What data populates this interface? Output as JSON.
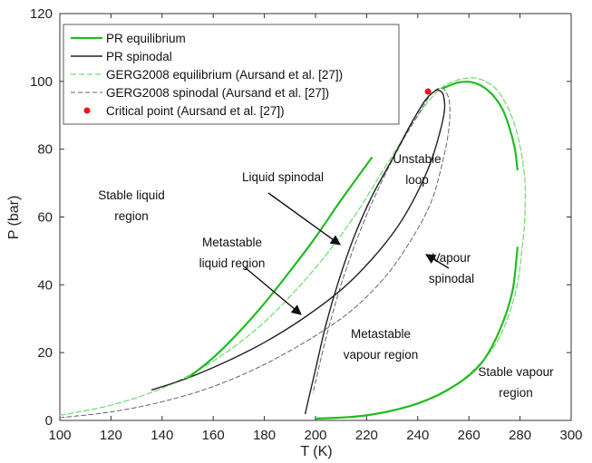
{
  "chart_data": {
    "type": "line",
    "title": "",
    "xlabel": "T (K)",
    "ylabel": "P (bar)",
    "xlim": [
      100,
      300
    ],
    "ylim": [
      0,
      120
    ],
    "xticks": [
      100,
      120,
      140,
      160,
      180,
      200,
      220,
      240,
      260,
      280,
      300
    ],
    "yticks": [
      0,
      20,
      40,
      60,
      80,
      100,
      120
    ],
    "grid": false,
    "legend_position": "top-left",
    "series": [
      {
        "name": "PR equilibrium",
        "style": "solid",
        "color": "#22bb22",
        "width": 2.2,
        "segments": [
          [
            [
              150,
              12.5
            ],
            [
              160,
              18.5
            ],
            [
              170,
              26
            ],
            [
              180,
              34.5
            ],
            [
              190,
              44
            ],
            [
              200,
              54
            ],
            [
              210,
              65
            ],
            [
              222,
              77.5
            ]
          ],
          [
            [
              200,
              0.5
            ],
            [
              220,
              1.5
            ],
            [
              240,
              5
            ],
            [
              255,
              10.5
            ],
            [
              265,
              17
            ],
            [
              272,
              26.5
            ],
            [
              277,
              38
            ],
            [
              279,
              51
            ]
          ],
          [
            [
              250,
              98
            ],
            [
              256,
              99.7
            ],
            [
              262,
              99.6
            ],
            [
              268,
              97
            ],
            [
              273,
              92
            ],
            [
              276,
              86
            ],
            [
              278,
              80
            ],
            [
              279,
              74
            ]
          ]
        ]
      },
      {
        "name": "PR spinodal",
        "style": "solid",
        "color": "#222222",
        "width": 1.4,
        "segments": [
          [
            [
              136,
              9
            ],
            [
              150,
              12.5
            ],
            [
              165,
              17.3
            ],
            [
              180,
              23
            ],
            [
              195,
              30
            ],
            [
              210,
              38.5
            ],
            [
              222,
              47.5
            ],
            [
              232,
              57
            ],
            [
              239,
              66
            ],
            [
              245,
              76
            ],
            [
              249,
              86
            ],
            [
              250.5,
              92
            ],
            [
              250,
              96
            ],
            [
              248.5,
              97.3
            ],
            [
              247,
              97.3
            ],
            [
              243,
              94.5
            ],
            [
              237,
              87
            ],
            [
              230,
              77
            ],
            [
              222,
              66
            ],
            [
              215,
              54
            ],
            [
              209,
              41
            ],
            [
              204,
              28
            ],
            [
              200,
              15
            ],
            [
              197.5,
              7
            ],
            [
              196,
              2
            ]
          ]
        ]
      },
      {
        "name": "GERG2008 equilibrium (Aursand et al. [27])",
        "style": "dashed",
        "color": "#6edc6e",
        "width": 1.2,
        "segments": [
          [
            [
              100,
              1.5
            ],
            [
              120,
              4.5
            ],
            [
              140,
              9.5
            ],
            [
              160,
              17.5
            ],
            [
              180,
              29
            ],
            [
              200,
              45
            ],
            [
              215,
              60
            ],
            [
              225,
              72
            ],
            [
              235,
              84
            ],
            [
              243,
              93
            ],
            [
              250,
              98.5
            ],
            [
              258,
              100.8
            ],
            [
              265,
              100.5
            ],
            [
              272,
              96.5
            ],
            [
              278,
              87
            ],
            [
              281.5,
              74
            ],
            [
              282,
              63
            ],
            [
              281,
              52
            ],
            [
              278,
              37
            ],
            [
              270,
              22
            ],
            [
              255,
              10.5
            ],
            [
              240,
              5
            ],
            [
              220,
              1.6
            ],
            [
              200,
              0.6
            ]
          ]
        ]
      },
      {
        "name": "GERG2008 spinodal (Aursand et al. [27])",
        "style": "dashed",
        "color": "#666666",
        "width": 1.0,
        "segments": [
          [
            [
              100,
              0.8
            ],
            [
              120,
              2.5
            ],
            [
              140,
              5.5
            ],
            [
              160,
              10
            ],
            [
              180,
              16.5
            ],
            [
              200,
              25
            ],
            [
              215,
              33
            ],
            [
              228,
              43
            ],
            [
              238,
              54
            ],
            [
              245,
              64
            ],
            [
              249,
              74
            ],
            [
              252,
              85
            ],
            [
              252.5,
              93
            ],
            [
              251,
              97
            ],
            [
              248.5,
              98
            ],
            [
              245,
              96
            ],
            [
              240,
              90
            ],
            [
              233,
              81
            ],
            [
              225,
              69
            ],
            [
              217,
              55
            ],
            [
              210,
              40
            ],
            [
              204,
              24
            ],
            [
              199,
              8
            ]
          ]
        ]
      }
    ],
    "points": [
      {
        "name": "Critical point (Aursand et al. [27])",
        "x": 244,
        "y": 97,
        "color": "#e31a1c"
      }
    ],
    "annotations": [
      {
        "lines": [
          "Stable liquid",
          "region"
        ]
      },
      {
        "lines": [
          "Liquid spinodal"
        ]
      },
      {
        "lines": [
          "Unstable",
          "loop"
        ]
      },
      {
        "lines": [
          "Metastable",
          "liquid region"
        ]
      },
      {
        "lines": [
          "Vapour",
          "spinodal"
        ]
      },
      {
        "lines": [
          "Metastable",
          "vapour region"
        ]
      },
      {
        "lines": [
          "Stable vapour",
          "region"
        ]
      }
    ]
  }
}
